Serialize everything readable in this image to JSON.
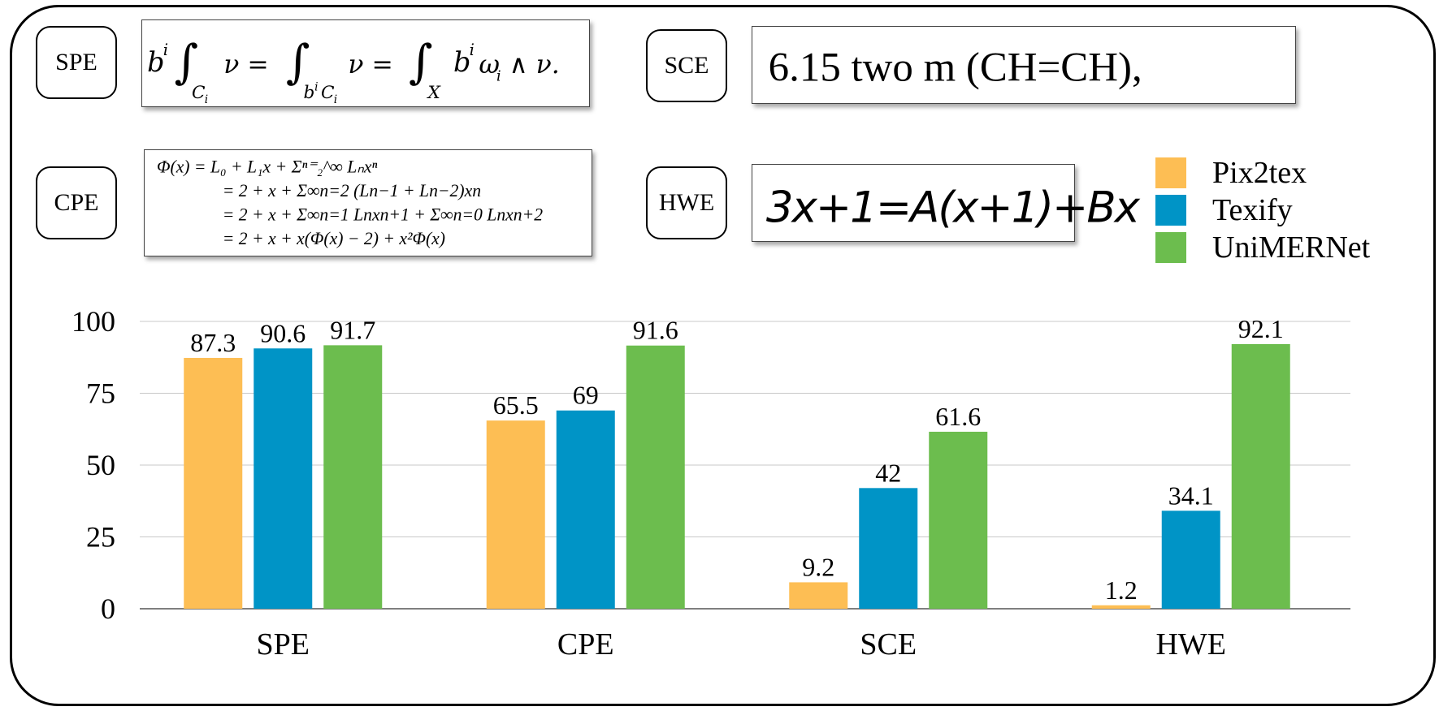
{
  "tags": {
    "spe": "SPE",
    "sce": "SCE",
    "cpe": "CPE",
    "hwe": "HWE"
  },
  "samples": {
    "spe_formula": {
      "b1": "b",
      "i1": "i",
      "ci1": "C",
      "ci1sub": "i",
      "nu1": "ν =",
      "b2": "b",
      "i2": "i",
      "ci2": "C",
      "ci2sub": "i",
      "nu2": "ν =",
      "x": "X",
      "tail": "b",
      "i3": "i",
      "omega": "ω",
      "isub": "i",
      "rest": "∧ ν."
    },
    "sce_text": "6.15  two  m  (CH=CH),",
    "cpe_lines": [
      "Φ(x)    = L₀ + L₁x + Σⁿ⁼₂^∞ Lₙxⁿ",
      "= 2 + x + Σ∞n=2 (Ln−1 + Ln−2)xn",
      "= 2 + x + Σ∞n=1 Lnxn+1 + Σ∞n=0 Lnxn+2",
      "= 2 + x + x(Φ(x) − 2) + x²Φ(x)"
    ],
    "hwe_text": "3x+1=A(x+1)+Bx"
  },
  "chart_data": {
    "type": "bar",
    "categories": [
      "SPE",
      "CPE",
      "SCE",
      "HWE"
    ],
    "series": [
      {
        "name": "Pix2tex",
        "color": "#FDBE54",
        "values": [
          87.3,
          65.5,
          9.2,
          1.2
        ]
      },
      {
        "name": "Texify",
        "color": "#0094C6",
        "values": [
          90.6,
          69,
          42,
          34.1
        ]
      },
      {
        "name": "UniMERNet",
        "color": "#6CBD4E",
        "values": [
          91.7,
          91.6,
          61.6,
          92.1
        ]
      }
    ],
    "ylim": [
      0,
      100
    ],
    "yticks": [
      0,
      25,
      50,
      75,
      100
    ],
    "grid": true,
    "legend": "top-right"
  }
}
